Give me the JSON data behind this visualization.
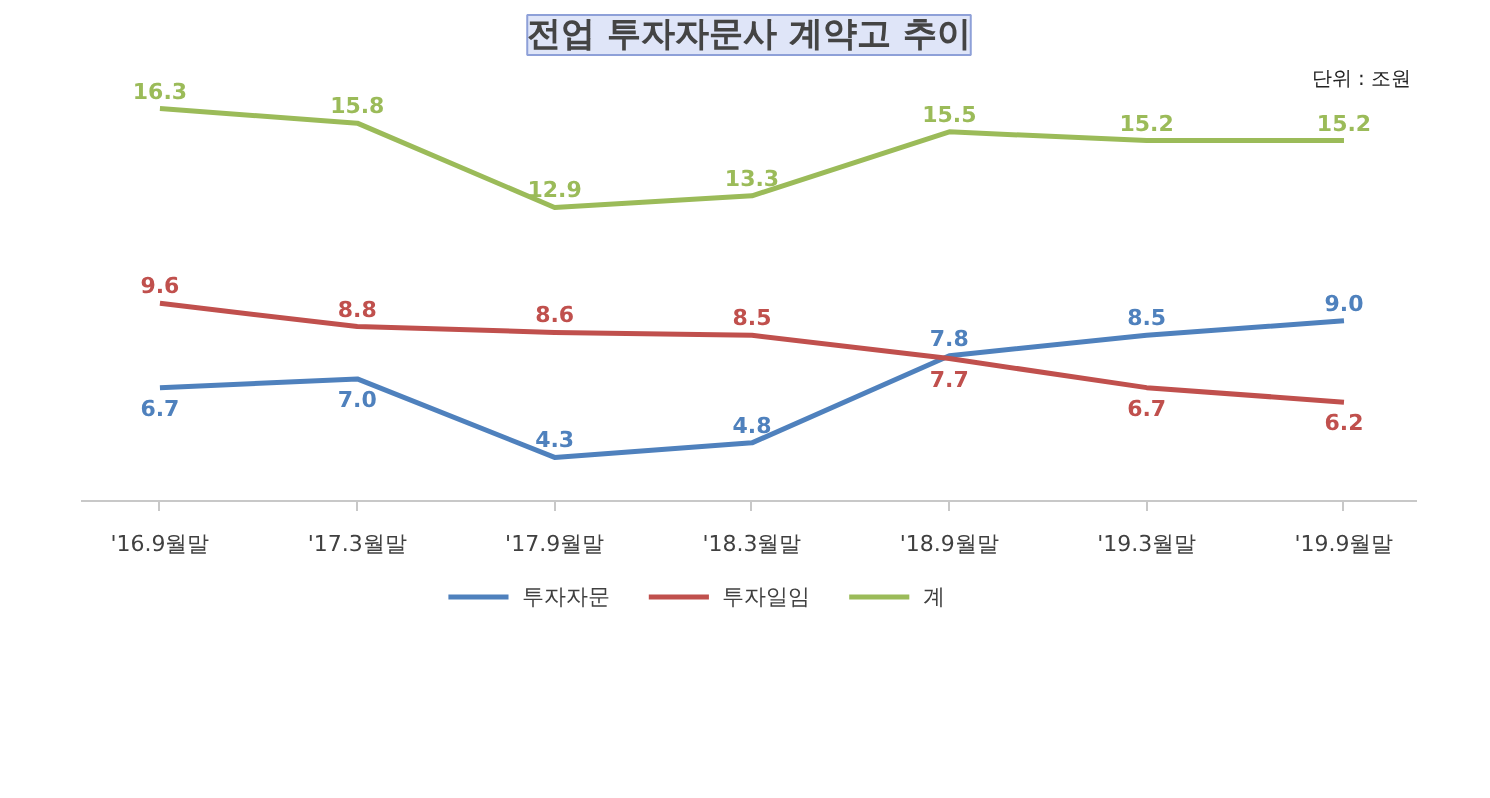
{
  "chart_data": {
    "type": "line",
    "title": "전업 투자자문사 계약고 추이",
    "annotations": [
      "단위 : 조원"
    ],
    "categories": [
      "'16.9월말",
      "'17.3월말",
      "'17.9월말",
      "'18.3월말",
      "'18.9월말",
      "'19.3월말",
      "'19.9월말"
    ],
    "series": [
      {
        "name": "투자자문",
        "color": "#4f81bd",
        "values": [
          6.7,
          7.0,
          4.3,
          4.8,
          7.8,
          8.5,
          9.0
        ],
        "value_labels": [
          "6.7",
          "7.0",
          "4.3",
          "4.8",
          "7.8",
          "8.5",
          "9.0"
        ]
      },
      {
        "name": "투자일임",
        "color": "#c0504d",
        "values": [
          9.6,
          8.8,
          8.6,
          8.5,
          7.7,
          6.7,
          6.2
        ],
        "value_labels": [
          "9.6",
          "8.8",
          "8.6",
          "8.5",
          "7.7",
          "6.7",
          "6.2"
        ]
      },
      {
        "name": "계",
        "color": "#9bbb59",
        "values": [
          16.3,
          15.8,
          12.9,
          13.3,
          15.5,
          15.2,
          15.2
        ],
        "value_labels": [
          "16.3",
          "15.8",
          "12.9",
          "13.3",
          "15.5",
          "15.2",
          "15.2"
        ]
      }
    ],
    "legend": "bottom",
    "grid": false,
    "marker": "none",
    "line_style": "solid"
  }
}
